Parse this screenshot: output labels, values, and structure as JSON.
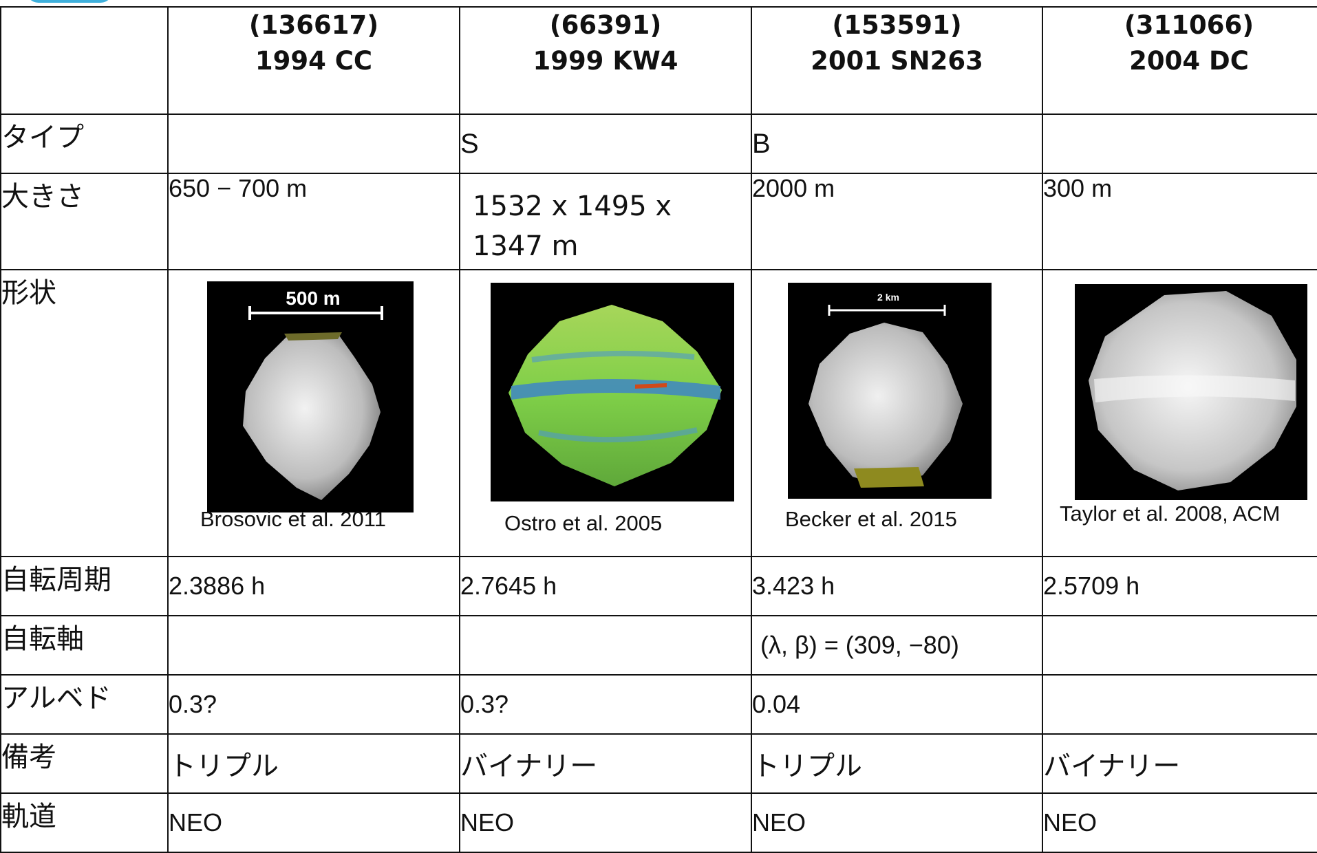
{
  "columns": [
    {
      "number": "(136617)",
      "designation": "1994 CC"
    },
    {
      "number": "(66391)",
      "designation": "1999 KW4"
    },
    {
      "number": "(153591)",
      "designation": "2001 SN263"
    },
    {
      "number": "(311066)",
      "designation": "2004 DC"
    }
  ],
  "rows": {
    "type": {
      "label": "タイプ",
      "values": [
        "",
        "S",
        "B",
        ""
      ]
    },
    "size": {
      "label": "大きさ",
      "values": [
        "650 − 700 m",
        "1532 x 1495 x 1347 m",
        "2000 m",
        "300 m"
      ]
    },
    "shape": {
      "label": "形状",
      "scale_bars": [
        "500 m",
        "",
        "2 km",
        ""
      ],
      "credits": [
        "Brosovic et al. 2011",
        "Ostro et al. 2005",
        "Becker et al. 2015",
        "Taylor et al. 2008, ACM"
      ]
    },
    "rotation_period": {
      "label": "自転周期",
      "values": [
        "2.3886 h",
        "2.7645 h",
        "3.423 h",
        "2.5709 h"
      ]
    },
    "rotation_axis": {
      "label": "自転軸",
      "values": [
        "",
        "",
        "(λ, β) = (309, −80)",
        ""
      ]
    },
    "albedo": {
      "label": "アルベド",
      "values": [
        "0.3?",
        "0.3?",
        "0.04",
        ""
      ]
    },
    "notes": {
      "label": "備考",
      "values": [
        "トリプル",
        "バイナリー",
        "トリプル",
        "バイナリー"
      ]
    },
    "orbit": {
      "label": "軌道",
      "values": [
        "NEO",
        "NEO",
        "NEO",
        "NEO"
      ]
    }
  },
  "colors": {
    "border": "#111111",
    "tab_accent": "#3fb0dc",
    "image_bg": "#000000"
  }
}
